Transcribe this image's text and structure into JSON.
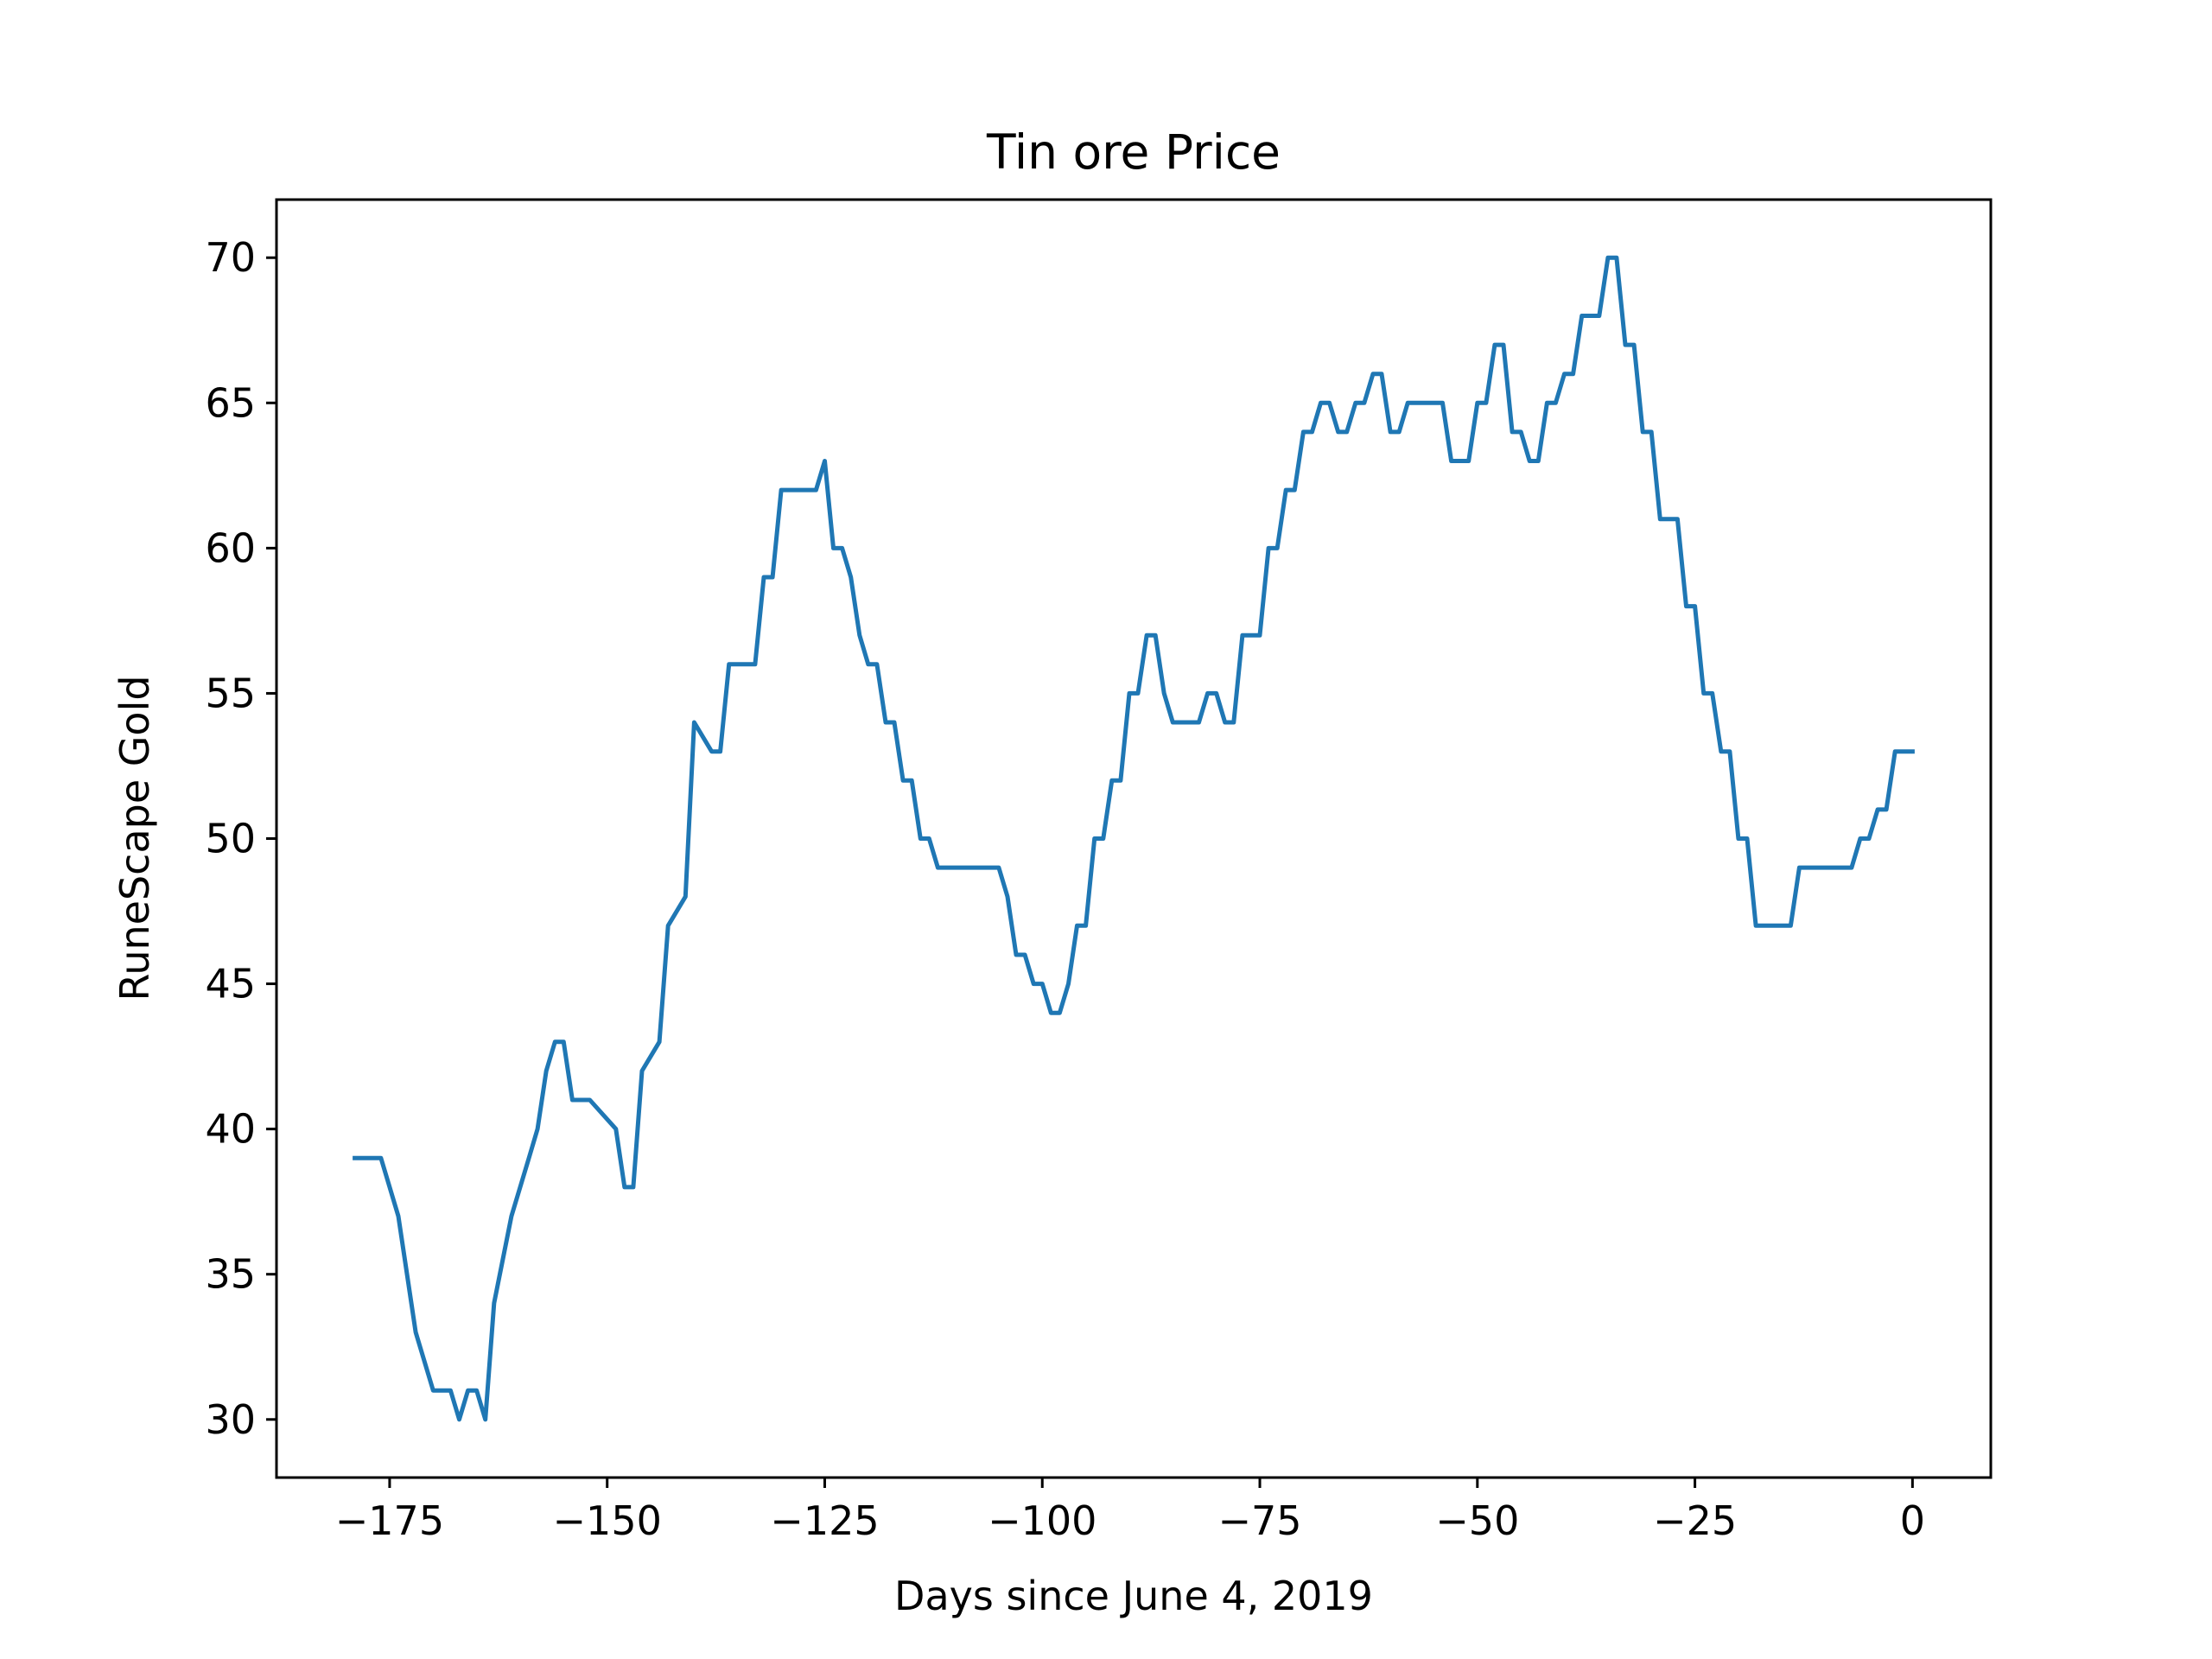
{
  "chart_data": {
    "type": "line",
    "title": "Tin ore Price",
    "xlabel": "Days since June 4, 2019",
    "ylabel": "RuneScape Gold",
    "xlim": [
      -188,
      9
    ],
    "ylim": [
      28,
      72
    ],
    "xticks": [
      -175,
      -150,
      -125,
      -100,
      -75,
      -50,
      -25,
      0
    ],
    "xtick_labels": [
      "−175",
      "−150",
      "−125",
      "−100",
      "−75",
      "−50",
      "−25",
      "0"
    ],
    "yticks": [
      30,
      35,
      40,
      45,
      50,
      55,
      60,
      65,
      70
    ],
    "ytick_labels": [
      "30",
      "35",
      "40",
      "45",
      "50",
      "55",
      "60",
      "65",
      "70"
    ],
    "grid": false,
    "legend": false,
    "series": [
      {
        "color": "#1f77b4",
        "x": [
          -179,
          -176,
          -174,
          -172,
          -170,
          -168,
          -167,
          -166,
          -165,
          -164,
          -163,
          -161,
          -159,
          -158,
          -157,
          -156,
          -155,
          -154,
          -152,
          -149,
          -148,
          -147,
          -146,
          -144,
          -143,
          -141,
          -140,
          -138,
          -137,
          -136,
          -133,
          -132,
          -131,
          -130,
          -129,
          -128,
          -126,
          -125,
          -124,
          -123,
          -122,
          -121,
          -120,
          -119,
          -118,
          -117,
          -116,
          -115,
          -114,
          -113,
          -112,
          -105,
          -104,
          -103,
          -102,
          -101,
          -100,
          -99,
          -98,
          -97,
          -96,
          -95,
          -94,
          -93,
          -92,
          -91,
          -90,
          -89,
          -88,
          -87,
          -86,
          -85,
          -82,
          -81,
          -80,
          -79,
          -78,
          -77,
          -75,
          -74,
          -73,
          -72,
          -71,
          -70,
          -69,
          -68,
          -67,
          -66,
          -65,
          -64,
          -63,
          -62,
          -61,
          -60,
          -59,
          -58,
          -54,
          -53,
          -51,
          -50,
          -49,
          -48,
          -47,
          -46,
          -45,
          -44,
          -43,
          -42,
          -41,
          -40,
          -39,
          -38,
          -36,
          -35,
          -34,
          -33,
          -32,
          -31,
          -30,
          -29,
          -28,
          -27,
          -26,
          -25,
          -24,
          -23,
          -22,
          -21,
          -20,
          -19,
          -18,
          -14,
          -13,
          -7,
          -6,
          -5,
          -4,
          -3,
          -2,
          -1,
          0
        ],
        "y": [
          39,
          39,
          37,
          33,
          31,
          31,
          30,
          31,
          31,
          30,
          34,
          37,
          39,
          40,
          42,
          43,
          43,
          41,
          41,
          40,
          38,
          38,
          42,
          43,
          47,
          48,
          54,
          53,
          53,
          56,
          56,
          59,
          59,
          62,
          62,
          62,
          62,
          63,
          60,
          60,
          59,
          57,
          56,
          56,
          54,
          54,
          52,
          52,
          50,
          50,
          49,
          49,
          48,
          46,
          46,
          45,
          45,
          44,
          44,
          45,
          47,
          47,
          50,
          50,
          52,
          52,
          55,
          55,
          57,
          57,
          55,
          54,
          54,
          55,
          55,
          54,
          54,
          57,
          57,
          60,
          60,
          62,
          62,
          64,
          64,
          65,
          65,
          64,
          64,
          65,
          65,
          66,
          66,
          64,
          64,
          65,
          65,
          63,
          63,
          65,
          65,
          67,
          67,
          64,
          64,
          63,
          63,
          65,
          65,
          66,
          66,
          68,
          68,
          70,
          70,
          67,
          67,
          64,
          64,
          61,
          61,
          61,
          58,
          58,
          55,
          55,
          53,
          53,
          50,
          50,
          47,
          47,
          49,
          49,
          50,
          50,
          51,
          51,
          53,
          53,
          53
        ]
      }
    ]
  }
}
